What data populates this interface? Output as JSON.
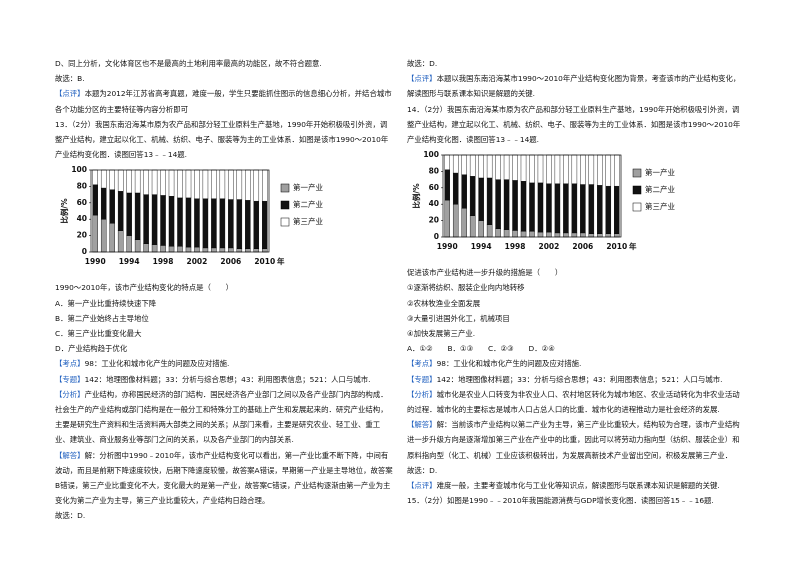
{
  "left": {
    "top": [
      "D、同上分析，文化体育区也不是最高的土地利用率最高的功能区，故不符合题意.",
      "故选：B.",
      {
        "tag": "【点评】",
        "text": "本题为2012年江苏省高考真题，难度一般，学生只要能抓住图示的信息细心分析，并结合城市各个功能分区的主要特征等内容分析即可"
      },
      "13．（2分）我国东南沿海某市原为农产品和部分轻工业原料生产基地，1990年开始积极吸引外资，调整产业结构，建立起以化工、机械、纺织、电子、服装等为主的工业体系．如图是该市1990～2010年产业结构变化图．读图回答13﹣﹣14题."
    ],
    "chart": {
      "type": "bar",
      "stacked": true,
      "y_label": "比例/%",
      "x_unit": "年",
      "categories": [
        "1990",
        null,
        null,
        null,
        "1994",
        null,
        null,
        null,
        "1998",
        null,
        null,
        null,
        "2002",
        null,
        null,
        null,
        "2006",
        null,
        null,
        null,
        "2010"
      ],
      "series": [
        {
          "name": "第一产业",
          "color": "#a0a0a0",
          "values": [
            45,
            40,
            35,
            26,
            20,
            15,
            10,
            9,
            8,
            7,
            7,
            6,
            6,
            5,
            5,
            5,
            5,
            4,
            4,
            4,
            4
          ]
        },
        {
          "name": "第二产业",
          "color": "#111111",
          "values": [
            37,
            38,
            41,
            48,
            52,
            57,
            60,
            61,
            61,
            61,
            59,
            60,
            59,
            60,
            60,
            60,
            59,
            60,
            59,
            58,
            58
          ]
        },
        {
          "name": "第三产业",
          "color": "#ffffff",
          "values": [
            18,
            22,
            24,
            26,
            28,
            28,
            30,
            30,
            31,
            32,
            34,
            34,
            35,
            35,
            35,
            35,
            36,
            36,
            37,
            38,
            38
          ]
        }
      ],
      "ylim": [
        0,
        100
      ],
      "yticks": [
        0,
        20,
        40,
        60,
        80,
        100
      ]
    },
    "bottom": [
      "1990～2010年，该市产业结构变化的特点是（　　）",
      "A．第一产业比重持续快速下降",
      "B．第二产业始终占主导地位",
      "C．第三产业比重变化最大",
      "D．产业结构趋于优化",
      {
        "tag": "【考点】",
        "text": "98：工业化和城市化产生的问题及应对措施."
      },
      {
        "tag": "【专题】",
        "text": "142：地理图像材料题；33：分析与综合思想；43：利用图表信息；521：人口与城市."
      },
      {
        "tag": "【分析】",
        "text": "产业结构，亦称国民经济的部门结构．国民经济各产业部门之间以及各产业部门内部的构成．社会生产的产业结构或部门结构是在一般分工和特殊分工的基础上产生和发展起来的．研究产业结构，主要是研究生产资料和生活资料两大部类之间的关系；从部门来看，主要是研究农业、轻工业、重工业、建筑业、商业服务业等部门之间的关系，以及各产业部门的内部关系."
      },
      {
        "tag": "【解答】",
        "text": "解：分析图中1990﹣2010年，该市产业结构变化可以看出，第一产业比重不断下降，中间有波动，而且是前期下降速度较快，后期下降速度较慢，故答案A错误，早期第一产业是主导地位，故答案B错误，第三产业比重变化不大，变化最大的是第一产业，故答案C错误，产业结构逐渐由第一产业为主变化为第二产业为主导，第三产业比重较大，产业结构日趋合理。"
      },
      "故选：D."
    ]
  },
  "right": {
    "top": [
      "故选：D.",
      {
        "tag": "【点评】",
        "text": "本题以我国东南沿海某市1990～2010年产业结构变化图为背景，考查该市的产业结构变化，解读图形与联系课本知识是解题的关键."
      },
      "14．（2分）我国东南沿海某市原为农产品和部分轻工业原料生产基地，1990年开始积极吸引外资，调整产业结构，建立起以化工、机械、纺织、电子、服装等为主的工业体系．如图是该市1990～2010年产业结构变化图．读图回答13﹣﹣14题."
    ],
    "chart": {
      "type": "bar",
      "stacked": true,
      "y_label": "比例/%",
      "x_unit": "年",
      "categories": [
        "1990",
        null,
        null,
        null,
        "1994",
        null,
        null,
        null,
        "1998",
        null,
        null,
        null,
        "2002",
        null,
        null,
        null,
        "2006",
        null,
        null,
        null,
        "2010"
      ],
      "series": [
        {
          "name": "第一产业",
          "color": "#a0a0a0",
          "values": [
            45,
            40,
            35,
            26,
            20,
            15,
            10,
            9,
            8,
            7,
            7,
            6,
            6,
            5,
            5,
            5,
            5,
            4,
            4,
            4,
            4
          ]
        },
        {
          "name": "第二产业",
          "color": "#111111",
          "values": [
            37,
            38,
            41,
            48,
            52,
            57,
            60,
            61,
            61,
            61,
            59,
            60,
            59,
            60,
            60,
            60,
            59,
            60,
            59,
            58,
            58
          ]
        },
        {
          "name": "第三产业",
          "color": "#ffffff",
          "values": [
            18,
            22,
            24,
            26,
            28,
            28,
            30,
            30,
            31,
            32,
            34,
            34,
            35,
            35,
            35,
            35,
            36,
            36,
            37,
            38,
            38
          ]
        }
      ],
      "ylim": [
        0,
        100
      ],
      "yticks": [
        0,
        20,
        40,
        60,
        80,
        100
      ]
    },
    "bottom": [
      "促进该市产业结构进一步升级的措施是（　　）",
      "①逐渐将纺织、服装企业向内地转移",
      "②农林牧渔业全面发展",
      "③大量引进国外化工，机械项目",
      "④加快发展第三产业.",
      "A．①②　　B．①③　　C．②③　　D．②④",
      {
        "tag": "【考点】",
        "text": "98：工业化和城市化产生的问题及应对措施."
      },
      {
        "tag": "【专题】",
        "text": "142：地理图像材料题；33：分析与综合思想；43：利用图表信息；521：人口与城市."
      },
      {
        "tag": "【分析】",
        "text": "城市化是农业人口转变为非农业人口、农村地区转化为城市地区、农业活动转化为非农业活动的过程．城市化的主要标志是城市人口占总人口的比重．城市化的进程推动力是社会经济的发展."
      },
      {
        "tag": "【解答】",
        "text": "解：当前该市产业结构以第二产业为主导，第三产业比重较大，结构较为合理，该市产业结构进一步升级方向是逐渐增加第三产业在产业中的比重，因此可以将劳动力指向型（纺织、服装企业）和原料指向型（化工、机械）工业应该积极转出，为发展高新技术产业留出空间，积极发展第三产业．"
      },
      "故选：D.",
      {
        "tag": "【点评】",
        "text": "难度一般，主要考查城市化与工业化等知识点，解读图形与联系课本知识是解题的关键."
      },
      "15．（2分）如图是1990﹣﹣2010年我国能源消费与GDP增长变化图．读图回答15﹣﹣16题."
    ]
  }
}
